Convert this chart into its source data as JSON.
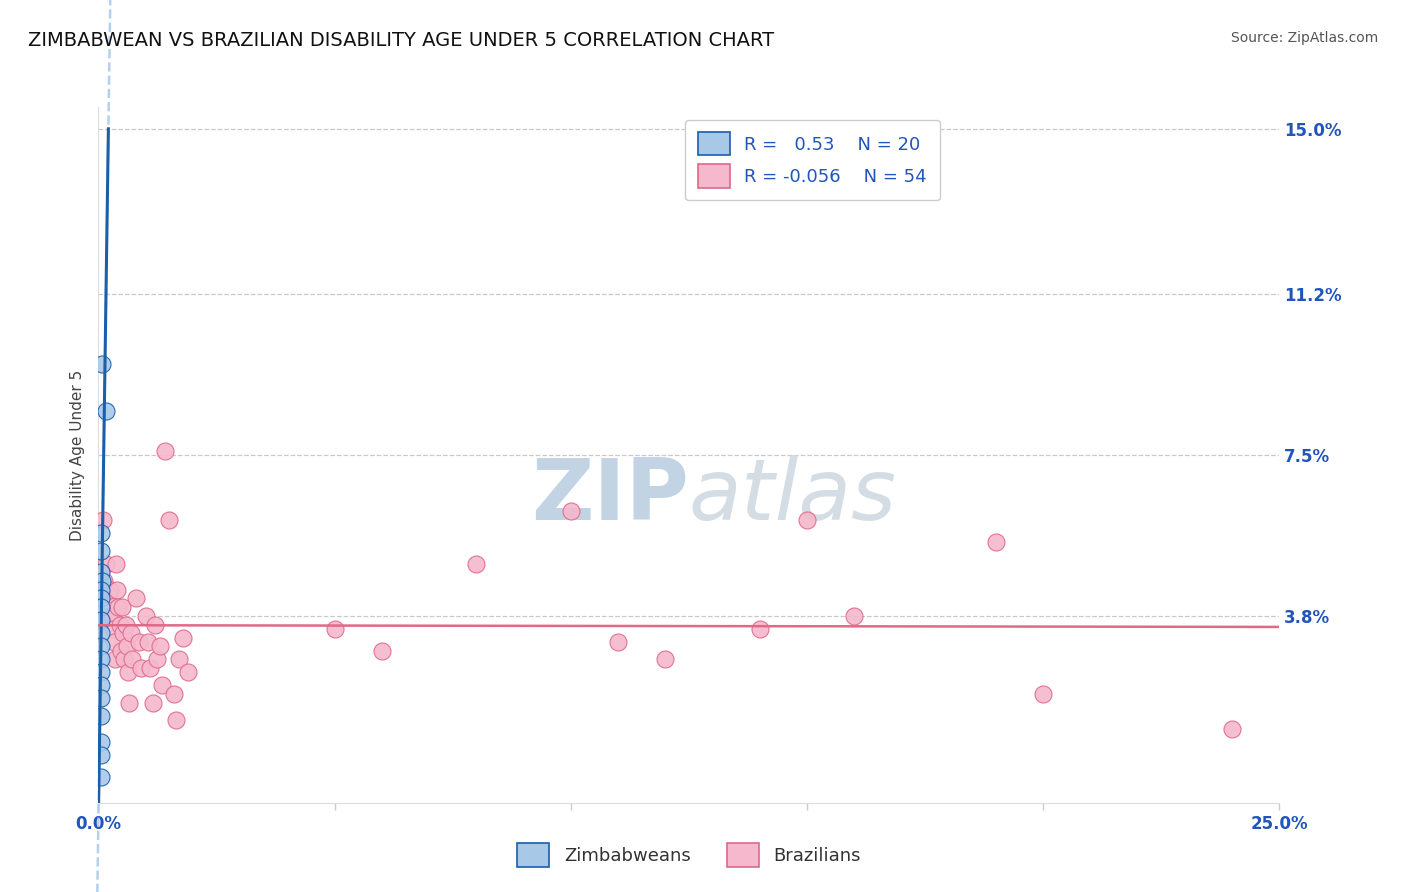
{
  "title": "ZIMBABWEAN VS BRAZILIAN DISABILITY AGE UNDER 5 CORRELATION CHART",
  "source": "Source: ZipAtlas.com",
  "ylabel": "Disability Age Under 5",
  "xlim": [
    0.0,
    0.25
  ],
  "ylim": [
    -0.005,
    0.155
  ],
  "ytick_positions": [
    0.0,
    0.038,
    0.075,
    0.112,
    0.15
  ],
  "yticklabels": [
    "",
    "3.8%",
    "7.5%",
    "11.2%",
    "15.0%"
  ],
  "xtick_positions": [
    0.0,
    0.05,
    0.1,
    0.15,
    0.2,
    0.25
  ],
  "xticklabels": [
    "0.0%",
    "",
    "",
    "",
    "",
    "25.0%"
  ],
  "zim_r": 0.53,
  "zim_n": 20,
  "bra_r": -0.056,
  "bra_n": 54,
  "zim_color": "#a8c8e8",
  "bra_color": "#f5b8cc",
  "zim_line_color": "#1a5fa8",
  "bra_line_color": "#e06888",
  "zim_scatter": [
    [
      0.0008,
      0.096
    ],
    [
      0.0015,
      0.085
    ],
    [
      0.0006,
      0.057
    ],
    [
      0.0006,
      0.053
    ],
    [
      0.0005,
      0.048
    ],
    [
      0.0007,
      0.046
    ],
    [
      0.0006,
      0.044
    ],
    [
      0.0006,
      0.042
    ],
    [
      0.0006,
      0.04
    ],
    [
      0.0006,
      0.037
    ],
    [
      0.0005,
      0.034
    ],
    [
      0.0005,
      0.031
    ],
    [
      0.0005,
      0.028
    ],
    [
      0.0005,
      0.025
    ],
    [
      0.0005,
      0.022
    ],
    [
      0.0005,
      0.019
    ],
    [
      0.0005,
      0.015
    ],
    [
      0.0005,
      0.009
    ],
    [
      0.0005,
      0.006
    ],
    [
      0.0005,
      0.001
    ]
  ],
  "bra_scatter": [
    [
      0.001,
      0.06
    ],
    [
      0.0012,
      0.046
    ],
    [
      0.0015,
      0.05
    ],
    [
      0.002,
      0.043
    ],
    [
      0.0022,
      0.038
    ],
    [
      0.0025,
      0.044
    ],
    [
      0.0028,
      0.038
    ],
    [
      0.003,
      0.035
    ],
    [
      0.0032,
      0.032
    ],
    [
      0.0035,
      0.028
    ],
    [
      0.0038,
      0.05
    ],
    [
      0.004,
      0.044
    ],
    [
      0.0042,
      0.04
    ],
    [
      0.0045,
      0.036
    ],
    [
      0.0048,
      0.03
    ],
    [
      0.005,
      0.04
    ],
    [
      0.0052,
      0.034
    ],
    [
      0.0055,
      0.028
    ],
    [
      0.0058,
      0.036
    ],
    [
      0.006,
      0.031
    ],
    [
      0.0062,
      0.025
    ],
    [
      0.0065,
      0.018
    ],
    [
      0.007,
      0.034
    ],
    [
      0.0072,
      0.028
    ],
    [
      0.008,
      0.042
    ],
    [
      0.0085,
      0.032
    ],
    [
      0.009,
      0.026
    ],
    [
      0.01,
      0.038
    ],
    [
      0.0105,
      0.032
    ],
    [
      0.011,
      0.026
    ],
    [
      0.0115,
      0.018
    ],
    [
      0.012,
      0.036
    ],
    [
      0.0125,
      0.028
    ],
    [
      0.013,
      0.031
    ],
    [
      0.0135,
      0.022
    ],
    [
      0.014,
      0.076
    ],
    [
      0.015,
      0.06
    ],
    [
      0.016,
      0.02
    ],
    [
      0.0165,
      0.014
    ],
    [
      0.017,
      0.028
    ],
    [
      0.018,
      0.033
    ],
    [
      0.019,
      0.025
    ],
    [
      0.05,
      0.035
    ],
    [
      0.06,
      0.03
    ],
    [
      0.08,
      0.05
    ],
    [
      0.1,
      0.062
    ],
    [
      0.11,
      0.032
    ],
    [
      0.12,
      0.028
    ],
    [
      0.14,
      0.035
    ],
    [
      0.15,
      0.06
    ],
    [
      0.16,
      0.038
    ],
    [
      0.19,
      0.055
    ],
    [
      0.2,
      0.02
    ],
    [
      0.24,
      0.012
    ]
  ],
  "background_color": "#ffffff",
  "grid_color": "#bbbbbb",
  "watermark_color": "#cdd8e8",
  "title_fontsize": 14,
  "axis_label_fontsize": 11,
  "tick_fontsize": 12,
  "tick_color": "#2255bb",
  "source_fontsize": 10
}
